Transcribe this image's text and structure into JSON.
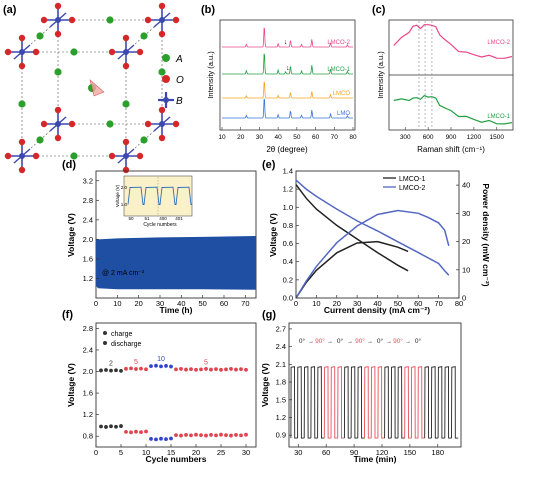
{
  "panel_labels": [
    "(a)",
    "(b)",
    "(c)",
    "(d)",
    "(e)",
    "(f)",
    "(g)"
  ],
  "colors": {
    "O": "#d62728",
    "A": "#2ca02c",
    "B": "#3a48b0",
    "lmco2": "#e8488a",
    "lmco1": "#22a045",
    "lmcoy": "#f5a623",
    "lmo": "#3b74d6",
    "band": "#1f4fa3",
    "inset_line": "#2f6db5",
    "inset_bg": "#fbf1c9",
    "e_lmco1": "#222222",
    "e_lmco2": "#5468c2",
    "charge": "#333333",
    "discharge_red": "#e0444e",
    "discharge_blue": "#3344cc",
    "g_black": "#222222",
    "g_red": "#e4505a"
  },
  "crystal": {
    "legend": [
      {
        "label": "A",
        "icon": "green-sphere-icon"
      },
      {
        "label": "O",
        "icon": "red-sphere-icon"
      },
      {
        "label": "B",
        "icon": "blue-octahedron-icon"
      }
    ]
  },
  "chart_data": [
    {
      "id": "b",
      "type": "line",
      "xlabel": "2θ (degree)",
      "ylabel": "Intensity (a.u.)",
      "xlim": [
        10,
        80
      ],
      "xticks": [
        10,
        20,
        30,
        40,
        50,
        60,
        70,
        80
      ],
      "series": [
        {
          "name": "LMCO-2",
          "offset": 3.0,
          "peaks": [
            [
              23.0,
              0.12
            ],
            [
              32.6,
              0.95
            ],
            [
              40.0,
              0.15
            ],
            [
              46.6,
              0.3
            ],
            [
              52.5,
              0.12
            ],
            [
              58.0,
              0.35
            ],
            [
              68.0,
              0.2
            ],
            [
              77.0,
              0.1
            ]
          ]
        },
        {
          "name": "LMCO-1",
          "offset": 2.0,
          "peaks": [
            [
              23.0,
              0.15
            ],
            [
              32.6,
              1.0
            ],
            [
              40.0,
              0.18
            ],
            [
              44.0,
              0.1
            ],
            [
              46.6,
              0.35
            ],
            [
              52.5,
              0.14
            ],
            [
              58.0,
              0.4
            ],
            [
              68.0,
              0.22
            ],
            [
              77.0,
              0.12
            ]
          ]
        },
        {
          "name": "LMCO",
          "offset": 1.0,
          "peaks": [
            [
              23.0,
              0.1
            ],
            [
              32.6,
              0.8
            ],
            [
              40.0,
              0.12
            ],
            [
              46.6,
              0.25
            ],
            [
              58.0,
              0.3
            ],
            [
              68.0,
              0.15
            ]
          ]
        },
        {
          "name": "LMO",
          "offset": 0.0,
          "peaks": [
            [
              23.0,
              0.12
            ],
            [
              32.6,
              0.95
            ],
            [
              40.0,
              0.15
            ],
            [
              46.6,
              0.32
            ],
            [
              52.5,
              0.12
            ],
            [
              58.0,
              0.36
            ],
            [
              68.0,
              0.18
            ],
            [
              77.0,
              0.1
            ]
          ]
        }
      ],
      "markers_x": [
        44.0,
        45.2
      ]
    },
    {
      "id": "c",
      "type": "line",
      "xlabel": "Raman shift (cm⁻¹)",
      "ylabel": "Intensity (a.u.)",
      "xlim": [
        100,
        1700
      ],
      "xticks": [
        300,
        600,
        900,
        1200,
        1500
      ],
      "series": [
        {
          "name": "LMCO-2",
          "x": [
            150,
            250,
            350,
            400,
            450,
            500,
            550,
            600,
            650,
            700,
            750,
            800,
            900,
            1000,
            1100,
            1200,
            1300,
            1400,
            1500,
            1600,
            1700
          ],
          "y": [
            0.55,
            0.68,
            0.83,
            0.9,
            0.93,
            0.9,
            0.92,
            0.96,
            0.95,
            0.88,
            0.78,
            0.68,
            0.55,
            0.46,
            0.4,
            0.37,
            0.35,
            0.33,
            0.32,
            0.31,
            0.31
          ]
        },
        {
          "name": "LMCO-1",
          "x": [
            150,
            250,
            350,
            400,
            450,
            500,
            550,
            600,
            650,
            700,
            750,
            800,
            900,
            1000,
            1100,
            1200,
            1300,
            1400,
            1500,
            1600,
            1700
          ],
          "y": [
            0.55,
            0.56,
            0.58,
            0.58,
            0.6,
            0.6,
            0.62,
            0.63,
            0.64,
            0.57,
            0.48,
            0.41,
            0.33,
            0.26,
            0.21,
            0.17,
            0.14,
            0.12,
            0.1,
            0.09,
            0.08
          ]
        }
      ],
      "dashed_x": [
        480,
        560,
        650
      ]
    },
    {
      "id": "d",
      "type": "area",
      "xlabel": "Time (h)",
      "ylabel": "Voltage (V)",
      "xlim": [
        0,
        75
      ],
      "ylim": [
        0.8,
        3.4
      ],
      "xticks": [
        0,
        10,
        20,
        30,
        40,
        50,
        60,
        70
      ],
      "yticks": [
        1.2,
        1.6,
        2.0,
        2.4,
        2.8,
        3.2
      ],
      "band": {
        "x": [
          0,
          1,
          10,
          30,
          50,
          75
        ],
        "upper": [
          2.0,
          2.0,
          2.02,
          2.04,
          2.05,
          2.07
        ],
        "lower": [
          1.05,
          1.0,
          0.98,
          0.98,
          0.98,
          0.97
        ]
      },
      "note": "@ 2 mA cm⁻²",
      "inset": {
        "xlabel": "Cycle numbers",
        "ylabel": "Voltage (V)",
        "xticks": [
          50,
          51,
          400,
          401
        ],
        "ylim": [
          0.5,
          2.5
        ],
        "yticks": [
          1.0,
          2.0
        ]
      }
    },
    {
      "id": "e",
      "type": "line",
      "xlabel": "Current density (mA cm⁻²)",
      "ylabel": "Voltage (V)",
      "y2label": "Power density (mW cm⁻²)",
      "xlim": [
        0,
        80
      ],
      "ylim": [
        0,
        1.4
      ],
      "y2lim": [
        0,
        45
      ],
      "xticks": [
        0,
        10,
        20,
        30,
        40,
        50,
        60,
        70,
        80
      ],
      "yticks": [
        0.0,
        0.2,
        0.4,
        0.6,
        0.8,
        1.0,
        1.2,
        1.4
      ],
      "y2ticks": [
        0,
        10,
        20,
        30,
        40
      ],
      "series": [
        {
          "name": "LMCO-1",
          "kind": "voltage",
          "x": [
            0,
            5,
            10,
            20,
            30,
            40,
            50,
            55
          ],
          "y": [
            1.25,
            1.1,
            0.98,
            0.8,
            0.65,
            0.5,
            0.36,
            0.3
          ]
        },
        {
          "name": "LMCO-1",
          "kind": "power",
          "x": [
            0,
            5,
            10,
            20,
            30,
            40,
            50,
            55
          ],
          "y": [
            0,
            5.5,
            9.8,
            16.0,
            19.5,
            20.0,
            18.0,
            16.5
          ]
        },
        {
          "name": "LMCO-2",
          "kind": "voltage",
          "x": [
            0,
            5,
            10,
            20,
            30,
            40,
            50,
            60,
            70,
            73,
            75
          ],
          "y": [
            1.3,
            1.2,
            1.12,
            0.98,
            0.85,
            0.74,
            0.62,
            0.5,
            0.38,
            0.3,
            0.25
          ]
        },
        {
          "name": "LMCO-2",
          "kind": "power",
          "x": [
            0,
            5,
            10,
            20,
            30,
            40,
            50,
            60,
            65,
            70,
            73,
            75
          ],
          "y": [
            0,
            6.0,
            11.2,
            19.6,
            25.5,
            29.6,
            31.0,
            30.0,
            28.5,
            26.6,
            24.0,
            18.5
          ]
        }
      ]
    },
    {
      "id": "f",
      "type": "scatter",
      "xlabel": "Cycle numbers",
      "ylabel": "Voltage (V)",
      "xlim": [
        0,
        32
      ],
      "ylim": [
        0.6,
        2.9
      ],
      "xticks": [
        0,
        5,
        10,
        15,
        20,
        25,
        30
      ],
      "yticks": [
        0.8,
        1.2,
        1.6,
        2.0,
        2.4,
        2.8
      ],
      "legend": [
        "charge",
        "discharge"
      ],
      "groups": [
        {
          "label": "2",
          "from": 1,
          "to": 5,
          "charge": 2.02,
          "discharge": 0.98,
          "color": "charge"
        },
        {
          "label": "5",
          "from": 6,
          "to": 10,
          "charge": 2.05,
          "discharge": 0.88,
          "color": "discharge_red"
        },
        {
          "label": "10",
          "from": 11,
          "to": 15,
          "charge": 2.1,
          "discharge": 0.75,
          "color": "discharge_blue"
        },
        {
          "label": "5",
          "from": 16,
          "to": 30,
          "charge": 2.04,
          "discharge": 0.82,
          "color": "discharge_red"
        }
      ]
    },
    {
      "id": "g",
      "type": "line",
      "xlabel": "Time (min)",
      "ylabel": "Voltage (V)",
      "xlim": [
        20,
        205
      ],
      "ylim": [
        0.7,
        2.8
      ],
      "xticks": [
        30,
        60,
        90,
        120,
        150,
        180
      ],
      "yticks": [
        0.9,
        1.2,
        1.5,
        1.8,
        2.1,
        2.4,
        2.7
      ],
      "angle_labels": [
        "0°",
        "90°",
        "0°",
        "90°",
        "0°",
        "90°",
        "0°"
      ],
      "pulse": {
        "start": 22,
        "period": 7.2,
        "count": 25,
        "high": 2.05,
        "low": 0.85
      },
      "color_blocks": [
        [
          22,
          57,
          "g_black"
        ],
        [
          57,
          78,
          "g_red"
        ],
        [
          78,
          100,
          "g_black"
        ],
        [
          100,
          118,
          "g_red"
        ],
        [
          118,
          143,
          "g_black"
        ],
        [
          143,
          165,
          "g_red"
        ],
        [
          165,
          205,
          "g_black"
        ]
      ]
    }
  ]
}
